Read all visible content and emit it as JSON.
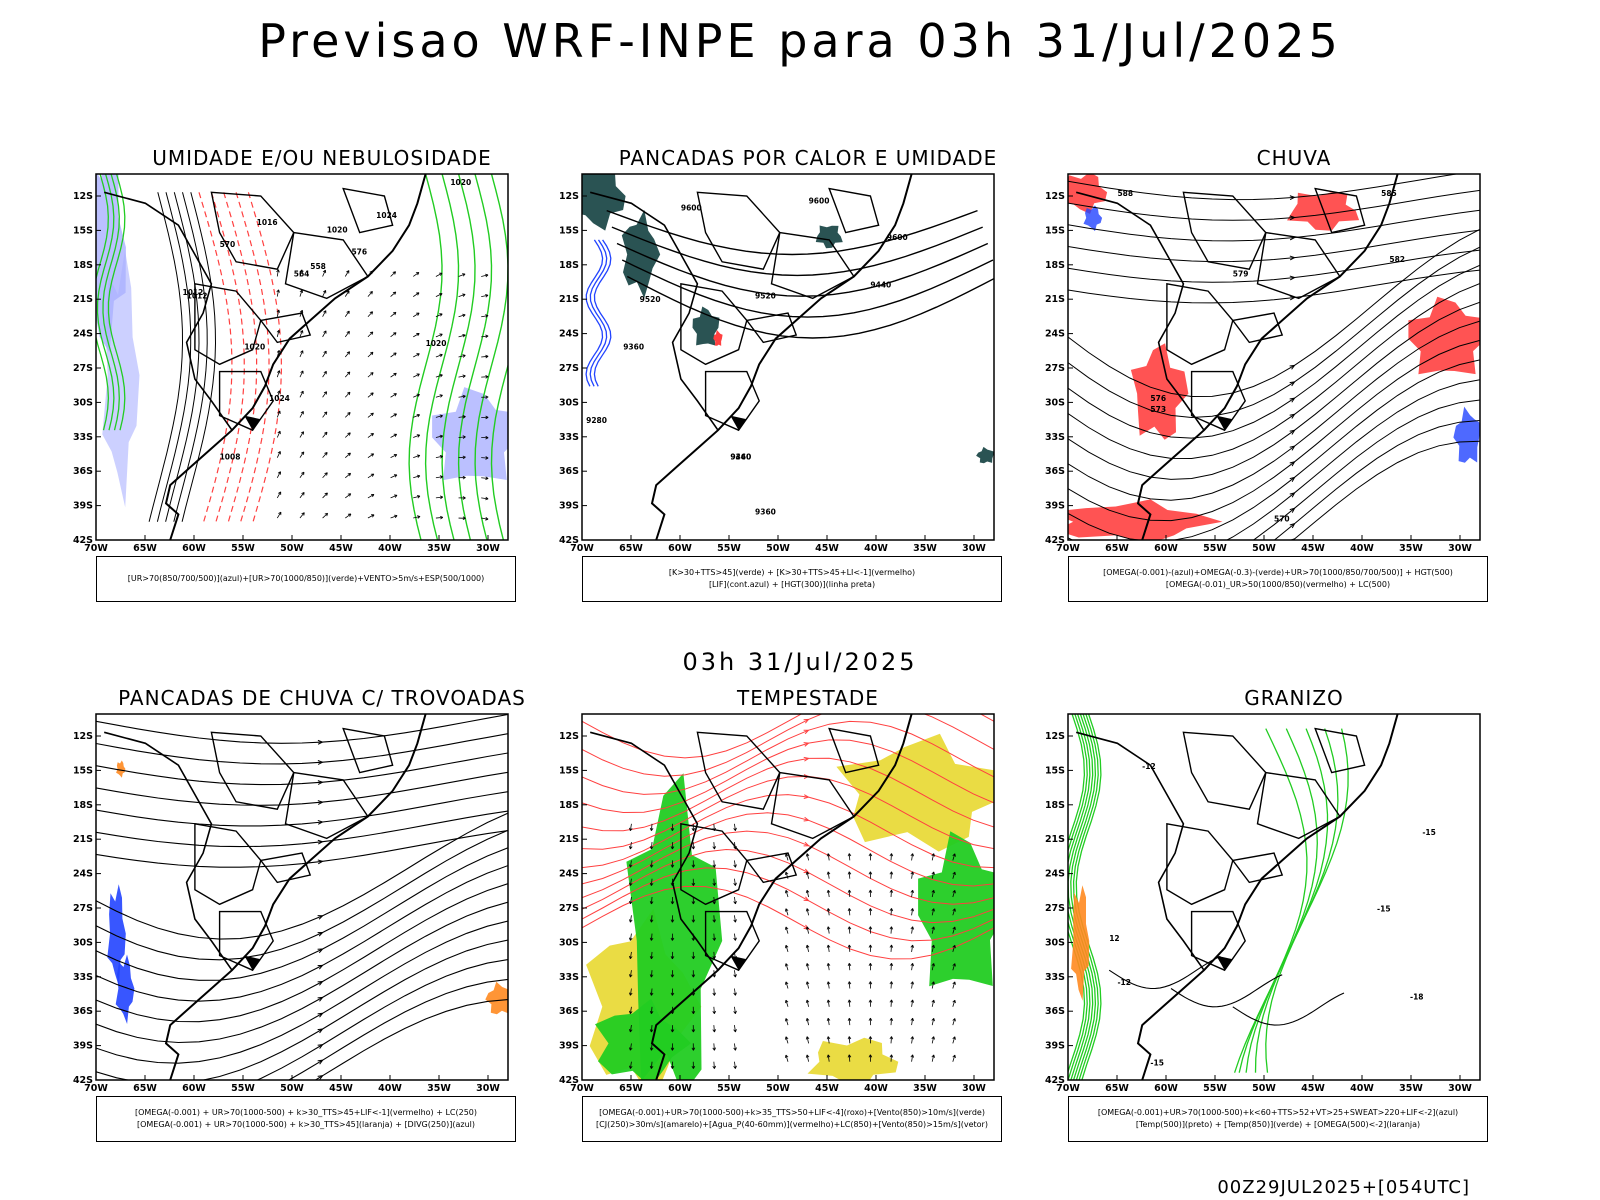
{
  "title": "Previsao WRF-INPE  para 03h 31/Jul/2025",
  "subtitle": "03h 31/Jul/2025",
  "footer": "00Z29JUL2025+[054UTC]",
  "axes": {
    "lat_ticks": [
      "12S",
      "15S",
      "18S",
      "21S",
      "24S",
      "27S",
      "30S",
      "33S",
      "36S",
      "39S",
      "42S"
    ],
    "lon_ticks": [
      "70W",
      "65W",
      "60W",
      "55W",
      "50W",
      "45W",
      "40W",
      "35W",
      "30W"
    ]
  },
  "colors": {
    "green": "#22cc22",
    "red": "#ff4040",
    "blue": "#2244ff",
    "light_blue": "#aab0ff",
    "dark_teal": "#1f4a4a",
    "yellow": "#e8d830",
    "orange": "#ff8a20",
    "black": "#000000"
  },
  "panels": [
    {
      "id": "umidade",
      "title": "UMIDADE E/OU NEBULOSIDADE",
      "legend": [
        "[UR>70(850/700/500)](azul)+[UR>70(1000/850)](verde)+VENTO>5m/s+ESP(500/1000)"
      ],
      "contour_labels": [
        "1020",
        "1016",
        "1012",
        "1008",
        "1024",
        "1020",
        "1024",
        "1020",
        "1012",
        "576",
        "570",
        "564",
        "558",
        "1020"
      ]
    },
    {
      "id": "pancadas_calor",
      "title": "PANCADAS POR CALOR E UMIDADE",
      "legend": [
        "[K>30+TTS>45](verde) + [K>30+TTS>45+LI<-1](vermelho)",
        "[LIF](cont.azul) + [HGT(300)](linha preta)"
      ],
      "contour_labels": [
        "9600",
        "9600",
        "9600",
        "9520",
        "9520",
        "9440",
        "9360",
        "9440",
        "9360",
        "9280",
        "9360"
      ]
    },
    {
      "id": "chuva",
      "title": "CHUVA",
      "legend": [
        "[OMEGA(-0.001)-(azul)+OMEGA(-0.3)-(verde)+UR>70(1000/850/700/500)] + HGT(500)",
        "[OMEGA(-0.01)_UR>50(1000/850)(vermelho) + LC(500)"
      ],
      "contour_labels": [
        "588",
        "585",
        "582",
        "579",
        "576",
        "573",
        "570"
      ]
    },
    {
      "id": "pancadas_trovoadas",
      "title": "PANCADAS DE CHUVA C/ TROVOADAS",
      "legend": [
        "[OMEGA(-0.001) + UR>70(1000-500) + k>30_TTS>45+LIF<-1](vermelho) + LC(250)",
        "[OMEGA(-0.001) + UR>70(1000-500) + k>30_TTS>45](laranja) + [DIVG(250)](azul)"
      ],
      "contour_labels": []
    },
    {
      "id": "tempestade",
      "title": "TEMPESTADE",
      "legend": [
        "[OMEGA(-0.001)+UR>70(1000-500)+k>35_TTS>50+LIF<-4](roxo)+[Vento(850)>10m/s](verde)",
        "[CJ(250)>30m/s](amarelo)+[Agua_P(40-60mm)](vermelho)+LC(850)+[Vento(850)>15m/s](vetor)"
      ],
      "contour_labels": []
    },
    {
      "id": "granizo",
      "title": "GRANIZO",
      "legend": [
        "[OMEGA(-0.001)+UR>70(1000-500)+k<60+TTS>52+VT>25+SWEAT>220+LIF<-2](azul)",
        "[Temp(500)](preto) + [Temp(850)](verde) + [OMEGA(500)<-2](laranja)"
      ],
      "contour_labels": [
        "-12",
        "-15",
        "-18",
        "-15",
        "12",
        "-12",
        "-15"
      ]
    }
  ]
}
